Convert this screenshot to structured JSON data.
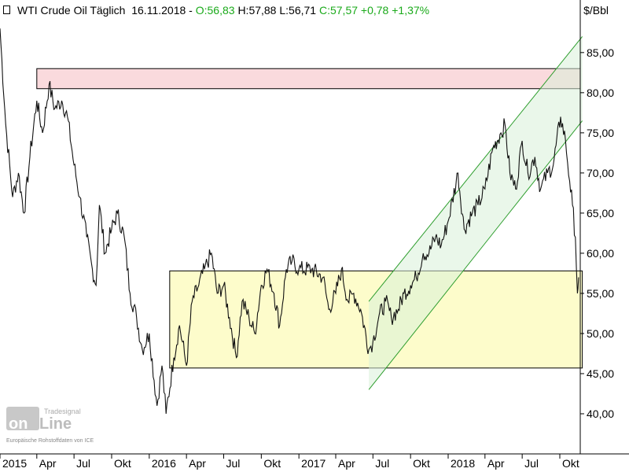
{
  "header": {
    "symbol_icon": "chart-icon",
    "title": "WTI Crude Oil Täglich",
    "date": "16.11.2018",
    "open": "O:56,83",
    "high": "H:57,88",
    "low": "L:56,71",
    "close": "C:57,57",
    "change": "+0,78",
    "change_pct": "+1,37%",
    "up_color": "#1aaa1a"
  },
  "axis_unit": "$/Bbl",
  "watermark": {
    "brand": "Tradesignal",
    "logo_text": "onLine",
    "source": "Europäische Rohstoffdaten von ICE"
  },
  "chart_data": {
    "type": "line",
    "y_ticks": [
      "85,00",
      "80,00",
      "75,00",
      "70,00",
      "65,00",
      "60,00",
      "55,00",
      "50,00",
      "45,00",
      "40,00"
    ],
    "y_tick_values": [
      85,
      80,
      75,
      70,
      65,
      60,
      55,
      50,
      45,
      40
    ],
    "ylim": [
      35,
      89
    ],
    "x_tick_labels": [
      "2015",
      "Apr",
      "Jul",
      "Okt",
      "2016",
      "Apr",
      "Jul",
      "Okt",
      "2017",
      "Apr",
      "Jul",
      "Okt",
      "2018",
      "Apr",
      "Jul",
      "Okt"
    ],
    "xlim": [
      "2015-01-01",
      "2018-11-20"
    ],
    "series": [
      {
        "values": [
          [
            "2015-01-01",
            88
          ],
          [
            "2015-01-15",
            76
          ],
          [
            "2015-02-01",
            67
          ],
          [
            "2015-02-15",
            70
          ],
          [
            "2015-03-01",
            65
          ],
          [
            "2015-03-15",
            72
          ],
          [
            "2015-04-01",
            79
          ],
          [
            "2015-04-15",
            75
          ],
          [
            "2015-05-01",
            81
          ],
          [
            "2015-05-15",
            78
          ],
          [
            "2015-06-01",
            79
          ],
          [
            "2015-06-15",
            77
          ],
          [
            "2015-07-01",
            71
          ],
          [
            "2015-07-15",
            67
          ],
          [
            "2015-08-01",
            62
          ],
          [
            "2015-08-15",
            58
          ],
          [
            "2015-08-24",
            56
          ],
          [
            "2015-09-01",
            66
          ],
          [
            "2015-09-15",
            60
          ],
          [
            "2015-10-01",
            63
          ],
          [
            "2015-10-15",
            65
          ],
          [
            "2015-11-01",
            62
          ],
          [
            "2015-11-15",
            55
          ],
          [
            "2015-12-01",
            52
          ],
          [
            "2015-12-15",
            48
          ],
          [
            "2016-01-01",
            50
          ],
          [
            "2016-01-20",
            41
          ],
          [
            "2016-02-01",
            46
          ],
          [
            "2016-02-11",
            40
          ],
          [
            "2016-03-01",
            47
          ],
          [
            "2016-03-15",
            51
          ],
          [
            "2016-04-01",
            46
          ],
          [
            "2016-04-15",
            54
          ],
          [
            "2016-05-01",
            56
          ],
          [
            "2016-05-15",
            58
          ],
          [
            "2016-06-01",
            60
          ],
          [
            "2016-06-15",
            55
          ],
          [
            "2016-07-01",
            56
          ],
          [
            "2016-07-15",
            52
          ],
          [
            "2016-08-01",
            47
          ],
          [
            "2016-08-15",
            54
          ],
          [
            "2016-09-01",
            52
          ],
          [
            "2016-09-15",
            50
          ],
          [
            "2016-10-01",
            56
          ],
          [
            "2016-10-15",
            58
          ],
          [
            "2016-11-01",
            55
          ],
          [
            "2016-11-15",
            51
          ],
          [
            "2016-12-01",
            58
          ],
          [
            "2016-12-15",
            59
          ],
          [
            "2017-01-01",
            58
          ],
          [
            "2017-02-01",
            58
          ],
          [
            "2017-03-01",
            57
          ],
          [
            "2017-03-15",
            53
          ],
          [
            "2017-04-01",
            55
          ],
          [
            "2017-04-15",
            58
          ],
          [
            "2017-05-01",
            54
          ],
          [
            "2017-05-15",
            55
          ],
          [
            "2017-06-01",
            53
          ],
          [
            "2017-06-21",
            48
          ],
          [
            "2017-07-01",
            49
          ],
          [
            "2017-07-15",
            52
          ],
          [
            "2017-08-01",
            54
          ],
          [
            "2017-08-15",
            52
          ],
          [
            "2017-09-01",
            53
          ],
          [
            "2017-09-15",
            55
          ],
          [
            "2017-10-01",
            56
          ],
          [
            "2017-10-15",
            57
          ],
          [
            "2017-11-01",
            60
          ],
          [
            "2017-11-15",
            60
          ],
          [
            "2017-12-01",
            62
          ],
          [
            "2017-12-15",
            61
          ],
          [
            "2018-01-01",
            64
          ],
          [
            "2018-01-25",
            70
          ],
          [
            "2018-02-09",
            63
          ],
          [
            "2018-03-01",
            65
          ],
          [
            "2018-03-15",
            66
          ],
          [
            "2018-04-01",
            68
          ],
          [
            "2018-04-20",
            73
          ],
          [
            "2018-05-10",
            75
          ],
          [
            "2018-05-20",
            76
          ],
          [
            "2018-06-01",
            70
          ],
          [
            "2018-06-15",
            68
          ],
          [
            "2018-07-01",
            74
          ],
          [
            "2018-07-15",
            70
          ],
          [
            "2018-08-01",
            72
          ],
          [
            "2018-08-15",
            68
          ],
          [
            "2018-09-01",
            70
          ],
          [
            "2018-09-15",
            71
          ],
          [
            "2018-10-03",
            77
          ],
          [
            "2018-10-15",
            74
          ],
          [
            "2018-10-25",
            69
          ],
          [
            "2018-11-01",
            66
          ],
          [
            "2018-11-08",
            62
          ],
          [
            "2018-11-13",
            55
          ],
          [
            "2018-11-16",
            57
          ]
        ]
      }
    ],
    "annotations": {
      "resistance_zone": {
        "y_low": 80.5,
        "y_high": 83,
        "x_start": "2015-04-01",
        "color": "#fadadd"
      },
      "range_box": {
        "y_low": 45.7,
        "y_high": 57.8,
        "x_start": "2016-02-20",
        "x_end": "2018-11-25",
        "color": "#fdfccb"
      },
      "trend_channel": {
        "lower": [
          [
            "2017-06-21",
            43
          ],
          [
            "2018-11-25",
            76.5
          ]
        ],
        "upper": [
          [
            "2017-06-21",
            54
          ],
          [
            "2018-11-25",
            87
          ]
        ],
        "color": "#d9f0d9"
      }
    },
    "grid": false,
    "legend": "none"
  }
}
